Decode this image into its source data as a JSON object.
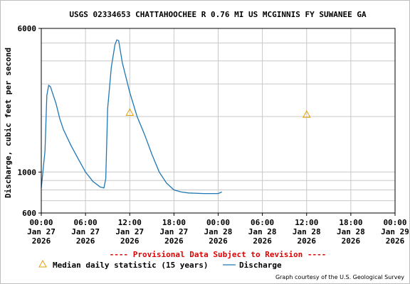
{
  "chart_data": {
    "type": "line",
    "title": "USGS 02334653 CHATTAHOOCHEE R 0.76 MI US MCGINNIS FY SUWANEE GA",
    "ylabel": "Discharge, cubic feet per second",
    "xlabel": "",
    "y_scale": "log",
    "ylim": [
      600,
      6000
    ],
    "y_tick_labels": [
      "6000",
      "1000",
      "600"
    ],
    "x_range": [
      "2026-01-27 00:00",
      "2026-01-29 00:00"
    ],
    "x_ticks": [
      {
        "hour": "00:00",
        "date": "Jan 27",
        "year": "2026"
      },
      {
        "hour": "06:00",
        "date": "Jan 27",
        "year": "2026"
      },
      {
        "hour": "12:00",
        "date": "Jan 27",
        "year": "2026"
      },
      {
        "hour": "18:00",
        "date": "Jan 27",
        "year": "2026"
      },
      {
        "hour": "00:00",
        "date": "Jan 28",
        "year": "2026"
      },
      {
        "hour": "06:00",
        "date": "Jan 28",
        "year": "2026"
      },
      {
        "hour": "12:00",
        "date": "Jan 28",
        "year": "2026"
      },
      {
        "hour": "18:00",
        "date": "Jan 28",
        "year": "2026"
      },
      {
        "hour": "00:00",
        "date": "Jan 29",
        "year": "2026"
      }
    ],
    "grid": true,
    "series": [
      {
        "name": "Discharge",
        "color": "#1f77b4",
        "points": [
          [
            "2026-01-27 00:00",
            820
          ],
          [
            "2026-01-27 00:30",
            1300
          ],
          [
            "2026-01-27 00:45",
            2600
          ],
          [
            "2026-01-27 01:00",
            2950
          ],
          [
            "2026-01-27 01:15",
            2900
          ],
          [
            "2026-01-27 01:30",
            2700
          ],
          [
            "2026-01-27 02:00",
            2350
          ],
          [
            "2026-01-27 02:30",
            1950
          ],
          [
            "2026-01-27 03:00",
            1700
          ],
          [
            "2026-01-27 04:00",
            1400
          ],
          [
            "2026-01-27 05:00",
            1180
          ],
          [
            "2026-01-27 06:00",
            1000
          ],
          [
            "2026-01-27 07:00",
            890
          ],
          [
            "2026-01-27 08:00",
            830
          ],
          [
            "2026-01-27 08:30",
            820
          ],
          [
            "2026-01-27 08:45",
            920
          ],
          [
            "2026-01-27 09:00",
            2200
          ],
          [
            "2026-01-27 09:30",
            3700
          ],
          [
            "2026-01-27 10:00",
            4900
          ],
          [
            "2026-01-27 10:15",
            5200
          ],
          [
            "2026-01-27 10:30",
            5150
          ],
          [
            "2026-01-27 11:00",
            3900
          ],
          [
            "2026-01-27 12:00",
            2700
          ],
          [
            "2026-01-27 13:00",
            2000
          ],
          [
            "2026-01-27 14:00",
            1600
          ],
          [
            "2026-01-27 15:00",
            1250
          ],
          [
            "2026-01-27 16:00",
            1000
          ],
          [
            "2026-01-27 17:00",
            870
          ],
          [
            "2026-01-27 18:00",
            800
          ],
          [
            "2026-01-27 19:00",
            780
          ],
          [
            "2026-01-27 20:00",
            770
          ],
          [
            "2026-01-27 22:00",
            765
          ],
          [
            "2026-01-28 00:00",
            765
          ],
          [
            "2026-01-28 00:30",
            780
          ]
        ]
      },
      {
        "name": "Median daily statistic (15 years)",
        "color": "#e6a000",
        "marker": "triangle",
        "points": [
          [
            "2026-01-27 12:00",
            2100
          ],
          [
            "2026-01-28 12:00",
            2050
          ]
        ]
      }
    ],
    "legend_position": "bottom",
    "annotations": [
      "---- Provisional Data Subject to Revision ----",
      "Graph courtesy of the U.S. Geological Survey"
    ]
  }
}
